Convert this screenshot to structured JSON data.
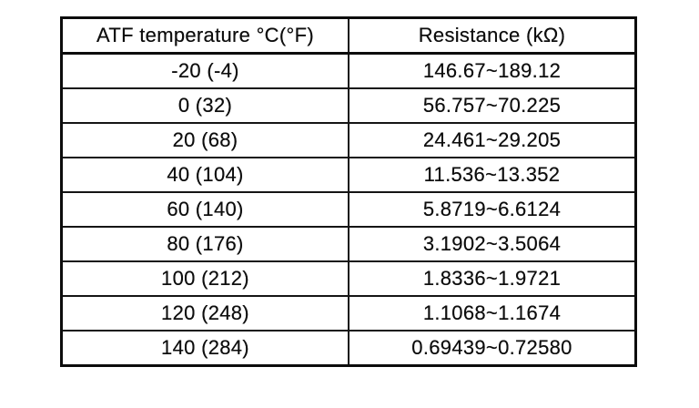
{
  "page": {
    "background": "#ffffff",
    "text_color": "#0d0d0d",
    "border_color": "#0c0c0c"
  },
  "table": {
    "columns": [
      "ATF temperature °C(°F)",
      "Resistance (kΩ)"
    ],
    "rows": [
      [
        "-20 (-4)",
        "146.67~189.12"
      ],
      [
        "0 (32)",
        "56.757~70.225"
      ],
      [
        "20 (68)",
        "24.461~29.205"
      ],
      [
        "40 (104)",
        "11.536~13.352"
      ],
      [
        "60 (140)",
        "5.8719~6.6124"
      ],
      [
        "80 (176)",
        "3.1902~3.5064"
      ],
      [
        "100 (212)",
        "1.8336~1.9721"
      ],
      [
        "120 (248)",
        "1.1068~1.1674"
      ],
      [
        "140 (284)",
        "0.69439~0.72580"
      ]
    ]
  }
}
